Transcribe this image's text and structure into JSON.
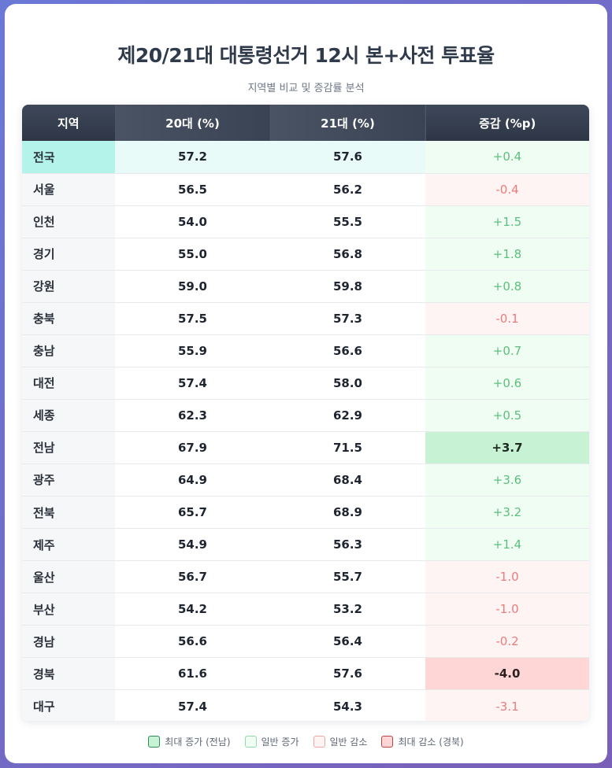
{
  "title": "제20/21대 대통령선거 12시 본+사전 투표율",
  "subtitle": "지역별 비교 및 증감률 분석",
  "table": {
    "headers": [
      "지역",
      "20대 (%)",
      "21대 (%)",
      "증감 (%p)"
    ],
    "rows": [
      {
        "region": "전국",
        "v20": "57.2",
        "v21": "57.6",
        "change": "+0.4"
      },
      {
        "region": "서울",
        "v20": "56.5",
        "v21": "56.2",
        "change": "-0.4"
      },
      {
        "region": "인천",
        "v20": "54.0",
        "v21": "55.5",
        "change": "+1.5"
      },
      {
        "region": "경기",
        "v20": "55.0",
        "v21": "56.8",
        "change": "+1.8"
      },
      {
        "region": "강원",
        "v20": "59.0",
        "v21": "59.8",
        "change": "+0.8"
      },
      {
        "region": "충북",
        "v20": "57.5",
        "v21": "57.3",
        "change": "-0.1"
      },
      {
        "region": "충남",
        "v20": "55.9",
        "v21": "56.6",
        "change": "+0.7"
      },
      {
        "region": "대전",
        "v20": "57.4",
        "v21": "58.0",
        "change": "+0.6"
      },
      {
        "region": "세종",
        "v20": "62.3",
        "v21": "62.9",
        "change": "+0.5"
      },
      {
        "region": "전남",
        "v20": "67.9",
        "v21": "71.5",
        "change": "+3.7"
      },
      {
        "region": "광주",
        "v20": "64.9",
        "v21": "68.4",
        "change": "+3.6"
      },
      {
        "region": "전북",
        "v20": "65.7",
        "v21": "68.9",
        "change": "+3.2"
      },
      {
        "region": "제주",
        "v20": "54.9",
        "v21": "56.3",
        "change": "+1.4"
      },
      {
        "region": "울산",
        "v20": "56.7",
        "v21": "55.7",
        "change": "-1.0"
      },
      {
        "region": "부산",
        "v20": "54.2",
        "v21": "53.2",
        "change": "-1.0"
      },
      {
        "region": "경남",
        "v20": "56.6",
        "v21": "56.4",
        "change": "-0.2"
      },
      {
        "region": "경북",
        "v20": "61.6",
        "v21": "57.6",
        "change": "-4.0"
      },
      {
        "region": "대구",
        "v20": "57.4",
        "v21": "54.3",
        "change": "-3.1"
      }
    ]
  },
  "legend": {
    "max_up": "최대 증가 (전남)",
    "up": "일반 증가",
    "down": "일반 감소",
    "max_down": "최대 감소 (경북)"
  },
  "colors": {
    "max_up": "#c7f2d3",
    "up": "#f0fdf3",
    "down": "#fff4f4",
    "max_down": "#ffd6d6",
    "national_highlight": "#b4f3ea"
  }
}
